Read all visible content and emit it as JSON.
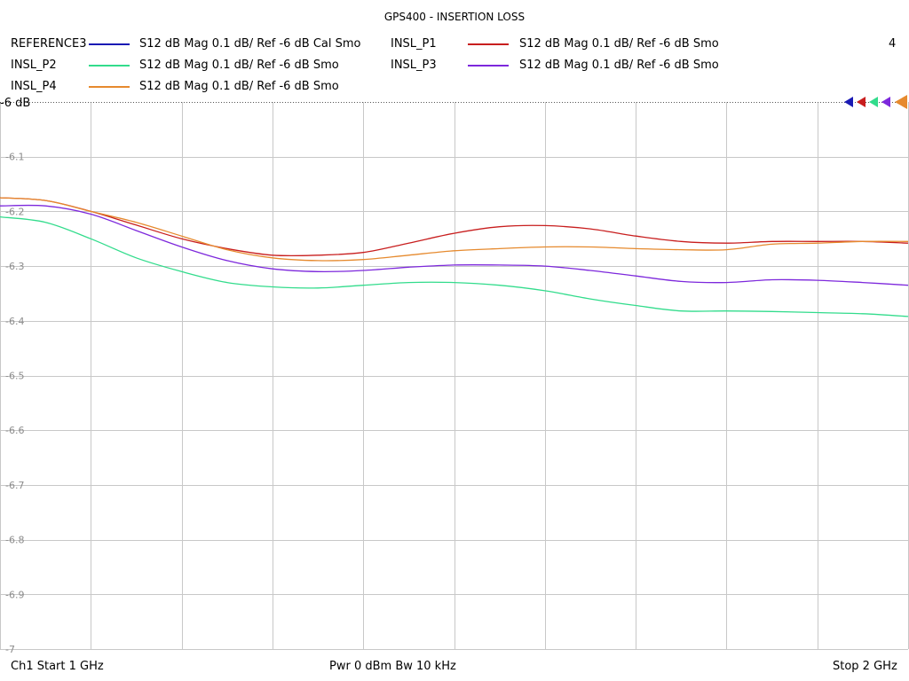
{
  "chart_data": {
    "type": "line",
    "title": "GPS400 - INSERTION LOSS",
    "active_trace": "4",
    "reference_label": "-6 dB",
    "x_range": [
      1,
      2
    ],
    "x_unit": "GHz",
    "ylim": [
      -7,
      -6
    ],
    "y_ticks": [
      "-6.1",
      "-6.2",
      "-6.3",
      "-6.4",
      "-6.5",
      "-6.6",
      "-6.7",
      "-6.8",
      "-6.9",
      "-7"
    ],
    "grid": true,
    "series": [
      {
        "name": "REFERENCE3",
        "description": "S12  dB Mag  0.1 dB/ Ref -6 dB  Cal Smo",
        "color": "#1a1ab4",
        "x": [],
        "y": []
      },
      {
        "name": "INSL_P1",
        "description": "S12  dB Mag  0.1 dB/ Ref -6 dB  Smo",
        "color": "#c81e1e",
        "x": [
          1.0,
          1.05,
          1.1,
          1.15,
          1.2,
          1.25,
          1.3,
          1.35,
          1.4,
          1.45,
          1.5,
          1.55,
          1.6,
          1.65,
          1.7,
          1.75,
          1.8,
          1.85,
          1.9,
          1.95,
          2.0
        ],
        "y": [
          -6.175,
          -6.18,
          -6.2,
          -6.225,
          -6.25,
          -6.268,
          -6.28,
          -6.28,
          -6.275,
          -6.258,
          -6.24,
          -6.228,
          -6.226,
          -6.232,
          -6.245,
          -6.255,
          -6.258,
          -6.255,
          -6.255,
          -6.255,
          -6.258
        ]
      },
      {
        "name": "INSL_P2",
        "description": "S12  dB Mag  0.1 dB/ Ref -6 dB  Smo",
        "color": "#32dc8c",
        "x": [
          1.0,
          1.05,
          1.1,
          1.15,
          1.2,
          1.25,
          1.3,
          1.35,
          1.4,
          1.45,
          1.5,
          1.55,
          1.6,
          1.65,
          1.7,
          1.75,
          1.8,
          1.85,
          1.9,
          1.95,
          2.0
        ],
        "y": [
          -6.21,
          -6.22,
          -6.25,
          -6.285,
          -6.31,
          -6.33,
          -6.338,
          -6.34,
          -6.335,
          -6.33,
          -6.33,
          -6.335,
          -6.345,
          -6.36,
          -6.372,
          -6.382,
          -6.382,
          -6.383,
          -6.385,
          -6.387,
          -6.392
        ]
      },
      {
        "name": "INSL_P3",
        "description": "S12  dB Mag  0.1 dB/ Ref -6 dB  Smo",
        "color": "#7d28dc",
        "x": [
          1.0,
          1.05,
          1.1,
          1.15,
          1.2,
          1.25,
          1.3,
          1.35,
          1.4,
          1.45,
          1.5,
          1.55,
          1.6,
          1.65,
          1.7,
          1.75,
          1.8,
          1.85,
          1.9,
          1.95,
          2.0
        ],
        "y": [
          -6.19,
          -6.19,
          -6.205,
          -6.235,
          -6.265,
          -6.29,
          -6.305,
          -6.31,
          -6.308,
          -6.302,
          -6.298,
          -6.298,
          -6.3,
          -6.308,
          -6.318,
          -6.328,
          -6.33,
          -6.325,
          -6.326,
          -6.33,
          -6.335
        ]
      },
      {
        "name": "INSL_P4",
        "description": "S12  dB Mag  0.1 dB/ Ref -6 dB  Smo",
        "color": "#e68a2e",
        "x": [
          1.0,
          1.05,
          1.1,
          1.15,
          1.2,
          1.25,
          1.3,
          1.35,
          1.4,
          1.45,
          1.5,
          1.55,
          1.6,
          1.65,
          1.7,
          1.75,
          1.8,
          1.85,
          1.9,
          1.95,
          2.0
        ],
        "y": [
          -6.175,
          -6.18,
          -6.2,
          -6.22,
          -6.245,
          -6.27,
          -6.285,
          -6.29,
          -6.288,
          -6.28,
          -6.272,
          -6.268,
          -6.265,
          -6.265,
          -6.268,
          -6.27,
          -6.27,
          -6.26,
          -6.258,
          -6.255,
          -6.255
        ]
      }
    ]
  },
  "footer": {
    "left": "Ch1  Start  1 GHz",
    "center": "Pwr  0 dBm  Bw  10 kHz",
    "right": "Stop  2 GHz"
  }
}
